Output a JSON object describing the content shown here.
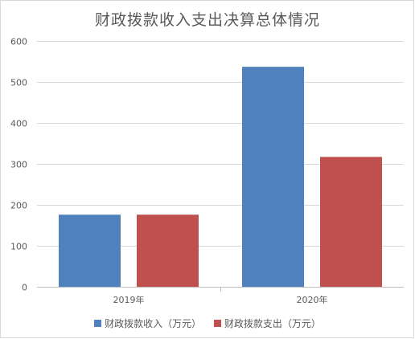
{
  "chart_data": {
    "type": "bar",
    "title": "财政拨款收入支出决算总体情况",
    "categories": [
      "2019年",
      "2020年"
    ],
    "series": [
      {
        "name": "财政拨款收入（万元）",
        "color": "#4f81bd",
        "values": [
          176,
          537
        ]
      },
      {
        "name": "财政拨款支出（万元）",
        "color": "#c0504d",
        "values": [
          176,
          317
        ]
      }
    ],
    "ylim": [
      0,
      600
    ],
    "yticks": [
      0,
      100,
      200,
      300,
      400,
      500,
      600
    ],
    "grid": true,
    "legend": "bottom",
    "xlabel": "",
    "ylabel": ""
  }
}
